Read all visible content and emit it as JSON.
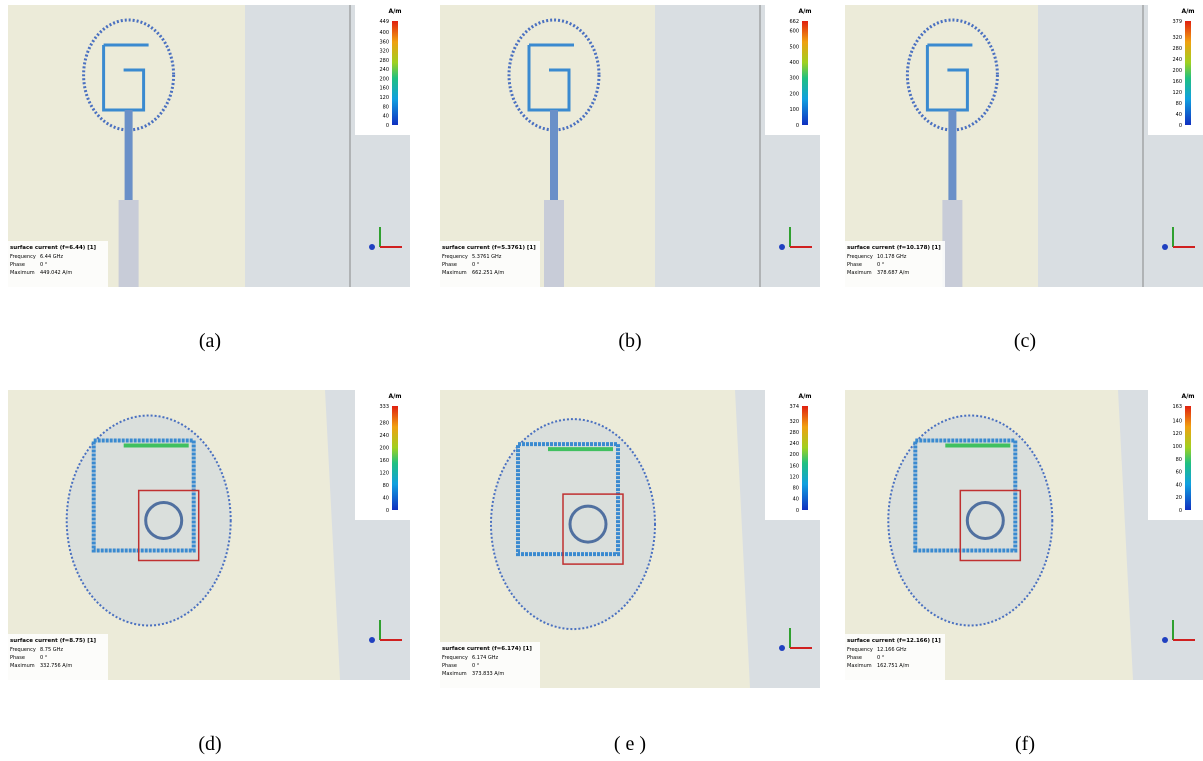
{
  "panels": [
    {
      "caption": "(a)",
      "title": "surface current (f=6.44) [1]",
      "frequency_label": "Frequency",
      "frequency": "6.44 GHz",
      "phase_label": "Phase",
      "phase": "0 °",
      "maximum_label": "Maximum",
      "maximum": "449.042 A/m",
      "unit": "A/m",
      "scale_ticks": [
        449,
        400,
        360,
        320,
        280,
        240,
        200,
        160,
        120,
        80,
        40,
        0
      ]
    },
    {
      "caption": "(b)",
      "title": "surface current (f=5.3761) [1]",
      "frequency_label": "Frequency",
      "frequency": "5.3761 GHz",
      "phase_label": "Phase",
      "phase": "0 °",
      "maximum_label": "Maximum",
      "maximum": "662.251 A/m",
      "unit": "A/m",
      "scale_ticks": [
        662,
        600,
        500,
        400,
        300,
        200,
        100,
        0
      ]
    },
    {
      "caption": "(c)",
      "title": "surface current (f=10.178) [1]",
      "frequency_label": "Frequency",
      "frequency": "10.178 GHz",
      "phase_label": "Phase",
      "phase": "0 °",
      "maximum_label": "Maximum",
      "maximum": "378.687 A/m",
      "unit": "A/m",
      "scale_ticks": [
        379,
        320,
        280,
        240,
        200,
        160,
        120,
        80,
        40,
        0
      ]
    },
    {
      "caption": "(d)",
      "title": "surface current (f=8.75) [1]",
      "frequency_label": "Frequency",
      "frequency": "8.75 GHz",
      "phase_label": "Phase",
      "phase": "0 °",
      "maximum_label": "Maximum",
      "maximum": "332.756 A/m",
      "unit": "A/m",
      "scale_ticks": [
        333,
        280,
        240,
        200,
        160,
        120,
        80,
        40,
        0
      ]
    },
    {
      "caption": "( e )",
      "title": "surface current (f=6.174) [1]",
      "frequency_label": "Frequency",
      "frequency": "6.174 GHz",
      "phase_label": "Phase",
      "phase": "0 °",
      "maximum_label": "Maximum",
      "maximum": "373.833 A/m",
      "unit": "A/m",
      "scale_ticks": [
        374,
        320,
        280,
        240,
        200,
        160,
        120,
        80,
        40,
        0
      ]
    },
    {
      "caption": "(f)",
      "title": "surface current (f=12.166) [1]",
      "frequency_label": "Frequency",
      "frequency": "12.166 GHz",
      "phase_label": "Phase",
      "phase": "0 °",
      "maximum_label": "Maximum",
      "maximum": "162.751 A/m",
      "unit": "A/m",
      "scale_ticks": [
        163,
        140,
        120,
        100,
        80,
        60,
        40,
        20,
        0
      ]
    }
  ]
}
